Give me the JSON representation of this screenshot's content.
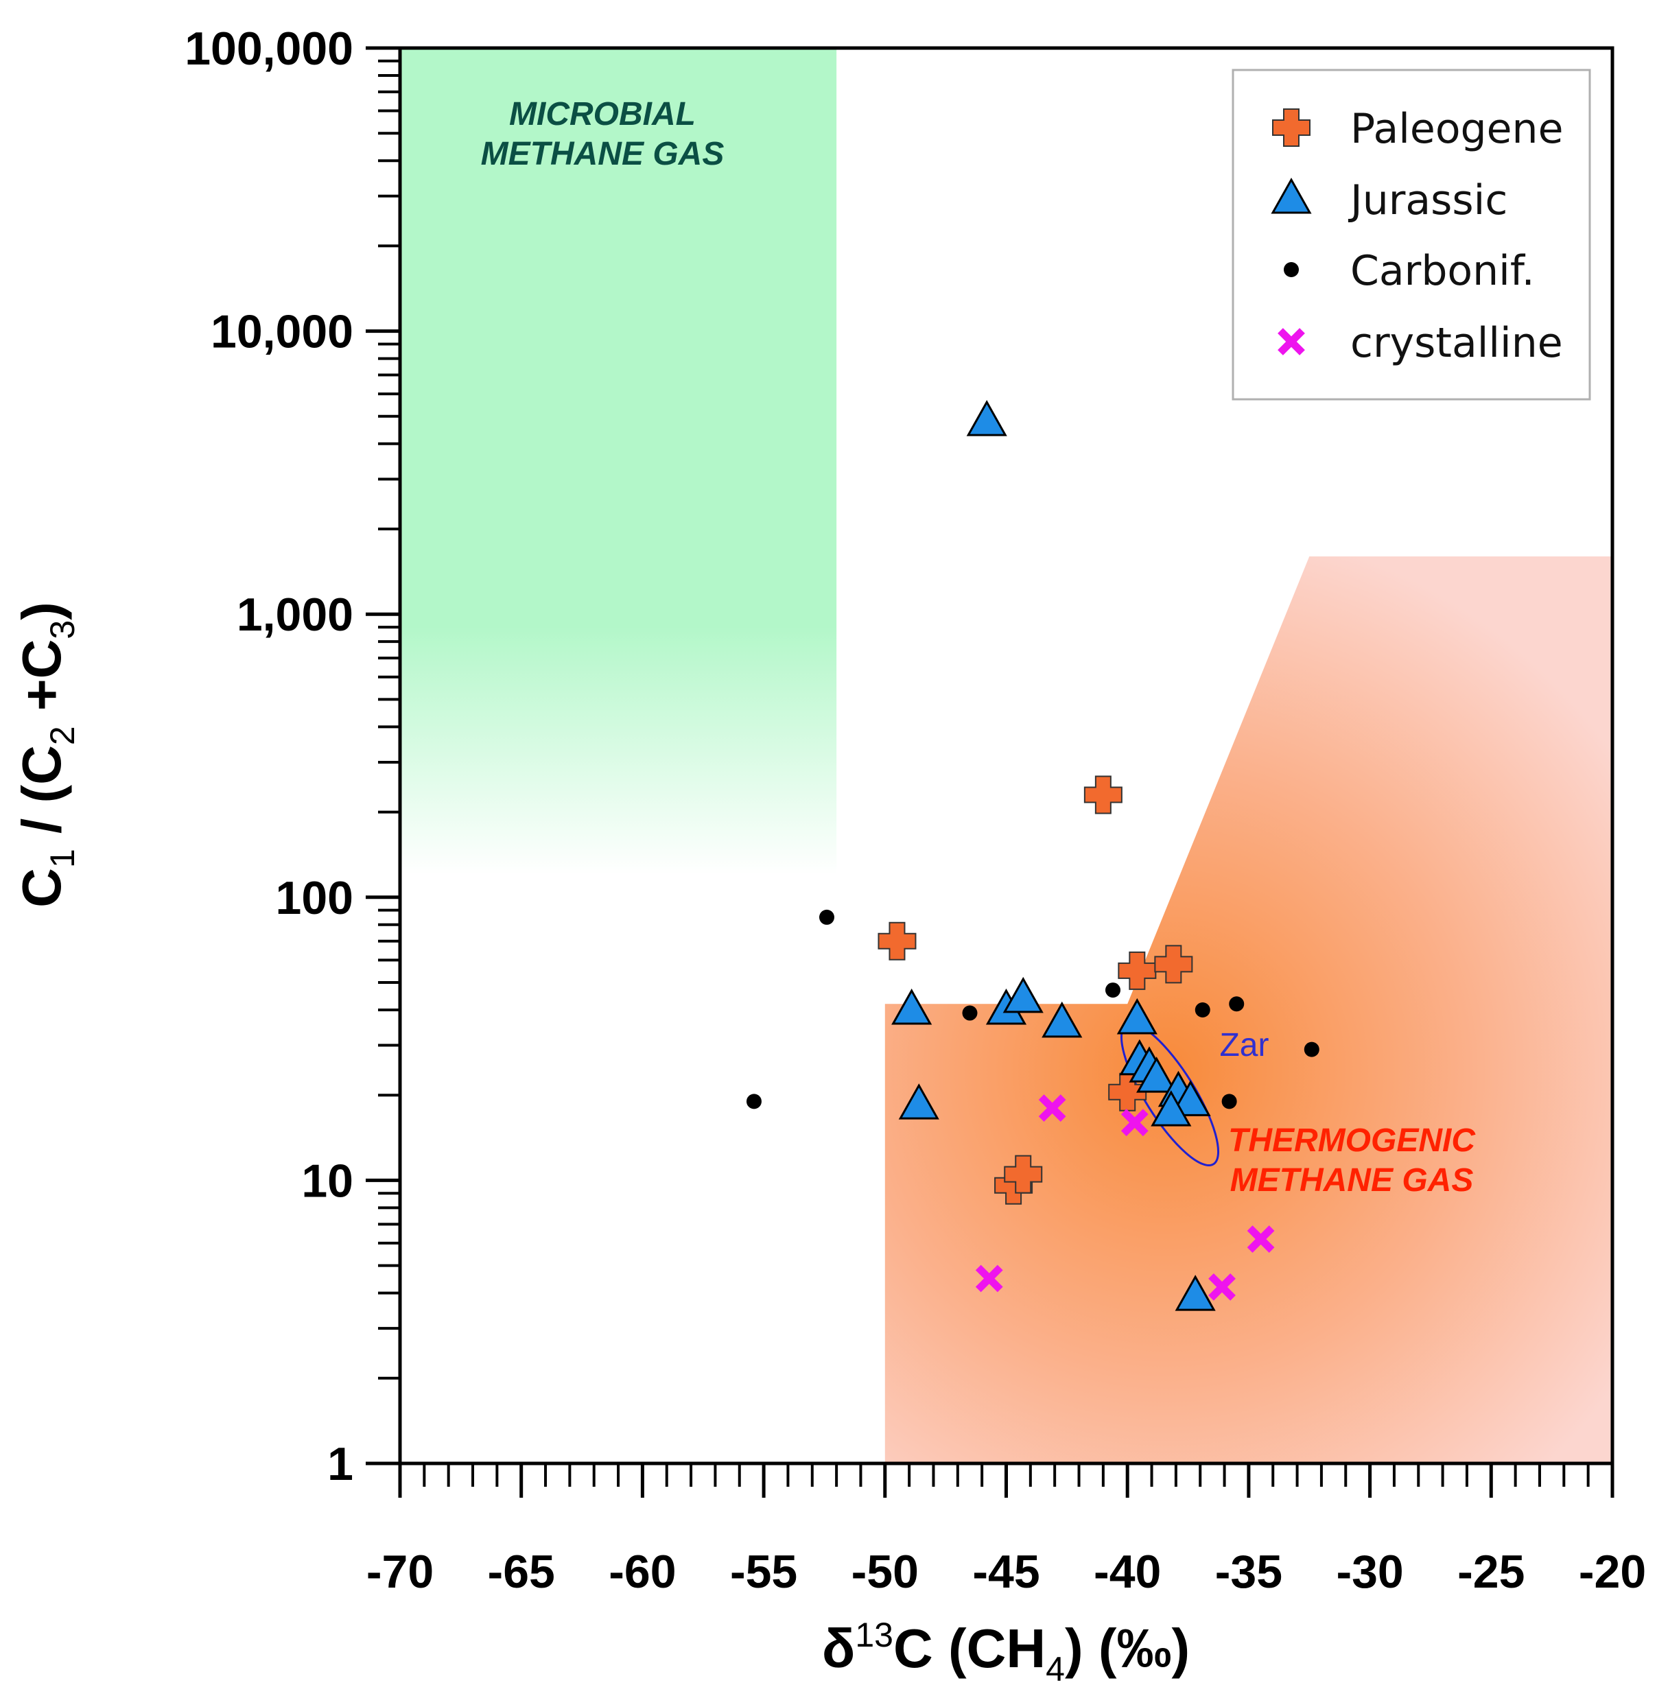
{
  "chart_data": {
    "type": "scatter",
    "xlabel": {
      "prefix": "δ",
      "superscript": "13",
      "main": "C (CH",
      "subscript": "4",
      "suffix": ")  (‰)"
    },
    "ylabel": {
      "parts": [
        {
          "text": "C",
          "style": "normal"
        },
        {
          "text": "1",
          "style": "sub"
        },
        {
          "text": " / (C",
          "style": "normal"
        },
        {
          "text": "2",
          "style": "sub"
        },
        {
          "text": " +C",
          "style": "normal"
        },
        {
          "text": "3",
          "style": "sub"
        },
        {
          "text": ")",
          "style": "normal"
        }
      ]
    },
    "xlim": [
      -70,
      -20
    ],
    "ylim": [
      1,
      100000
    ],
    "yscale": "log",
    "x_ticks": [
      -70,
      -65,
      -60,
      -55,
      -50,
      -45,
      -40,
      -35,
      -30,
      -25,
      -20
    ],
    "x_tick_labels": [
      "-70",
      "-65",
      "-60",
      "-55",
      "-50",
      "-45",
      "-40",
      "-35",
      "-30",
      "-25",
      "-20"
    ],
    "y_ticks": [
      1,
      10,
      100,
      1000,
      10000,
      100000
    ],
    "y_tick_labels": [
      "1",
      "10",
      "100",
      "1,000",
      "10,000",
      "100,000"
    ],
    "legend_position": "top-right",
    "regions": [
      {
        "name": "microbial",
        "label_lines": [
          "MICROBIAL",
          "METHANE GAS"
        ],
        "label_color": "#0b4f44",
        "color": "#b3f7c9"
      },
      {
        "name": "thermogenic",
        "label_lines": [
          "THERMOGENIC",
          "METHANE GAS"
        ],
        "label_color": "#ff2200",
        "color": "#f7883a"
      }
    ],
    "annotations": [
      {
        "text": "Zar",
        "x": -36.2,
        "y": 22,
        "color": "#3030d0"
      }
    ],
    "series": [
      {
        "name": "Paleogene",
        "marker": "plus",
        "color": "#f26a2e",
        "points": [
          [
            -41.0,
            230
          ],
          [
            -49.5,
            70
          ],
          [
            -39.6,
            55
          ],
          [
            -38.1,
            58
          ],
          [
            -40.0,
            20.5
          ],
          [
            -44.7,
            9.6
          ],
          [
            -44.3,
            10.5
          ]
        ]
      },
      {
        "name": "Jurassic",
        "marker": "triangle",
        "color": "#1e8ce6",
        "points": [
          [
            -45.8,
            4800
          ],
          [
            -48.9,
            40
          ],
          [
            -45.0,
            40
          ],
          [
            -44.3,
            44
          ],
          [
            -42.7,
            36
          ],
          [
            -39.6,
            37
          ],
          [
            -48.6,
            18.5
          ],
          [
            -39.5,
            26.5
          ],
          [
            -39.1,
            25
          ],
          [
            -38.8,
            23
          ],
          [
            -37.9,
            20.5
          ],
          [
            -37.4,
            19
          ],
          [
            -38.2,
            17.5
          ],
          [
            -37.2,
            3.9
          ]
        ]
      },
      {
        "name": "Carbonif.",
        "marker": "dot",
        "color": "#000000",
        "points": [
          [
            -52.4,
            85
          ],
          [
            -40.6,
            47
          ],
          [
            -46.5,
            39
          ],
          [
            -36.9,
            40
          ],
          [
            -35.5,
            42
          ],
          [
            -32.4,
            29
          ],
          [
            -55.4,
            19
          ],
          [
            -35.8,
            19
          ]
        ]
      },
      {
        "name": "crystalline",
        "marker": "x",
        "color": "#ee14ee",
        "points": [
          [
            -43.1,
            18
          ],
          [
            -39.7,
            16
          ],
          [
            -45.7,
            4.5
          ],
          [
            -36.1,
            4.2
          ],
          [
            -34.5,
            6.2
          ]
        ]
      }
    ]
  }
}
